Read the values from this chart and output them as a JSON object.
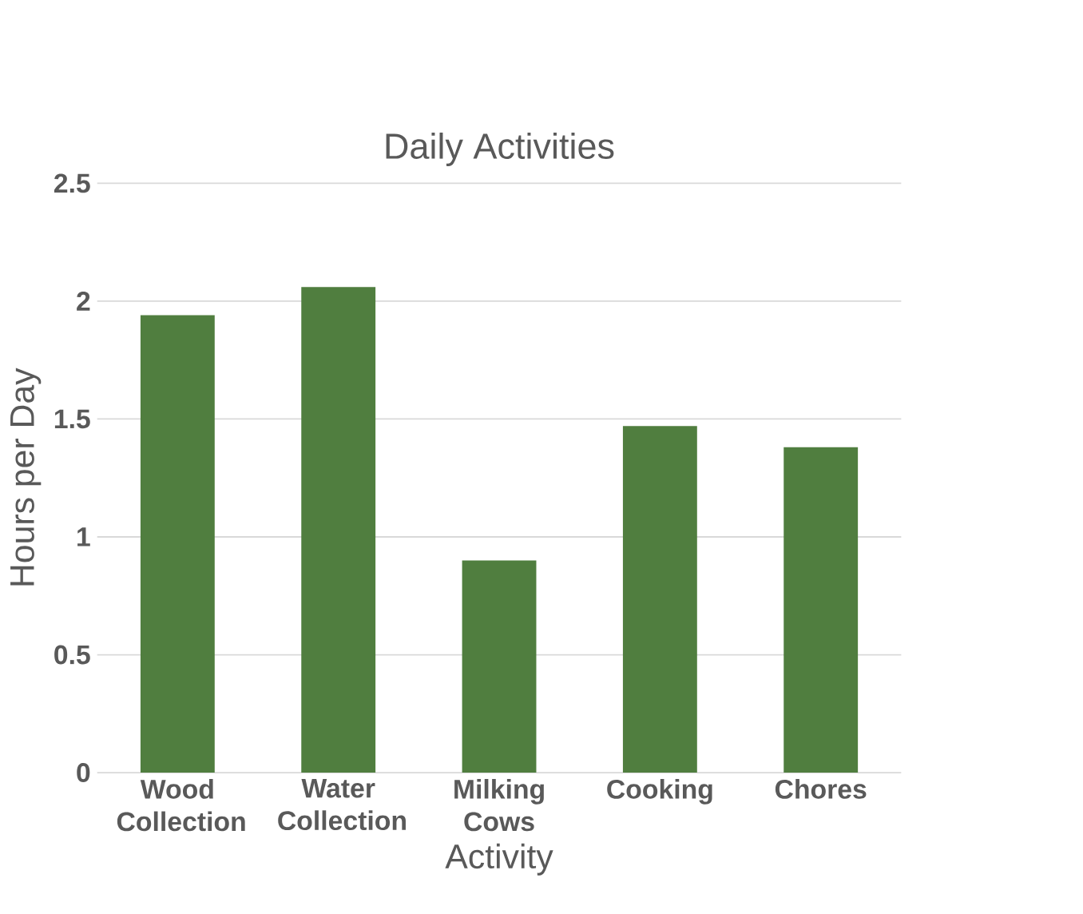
{
  "chart_data": {
    "type": "bar",
    "title": "Daily Activities",
    "xlabel": "Activity",
    "ylabel": "Hours per Day",
    "categories": [
      "Wood Collection",
      "Water Collection",
      "Milking Cows",
      "Cooking",
      "Chores"
    ],
    "values": [
      1.94,
      2.06,
      0.9,
      1.47,
      1.38
    ],
    "color": "#507e3f",
    "ylim": [
      0,
      2.5
    ],
    "yticks": [
      0,
      0.5,
      1,
      1.5,
      2,
      2.5
    ],
    "grid": "y"
  }
}
